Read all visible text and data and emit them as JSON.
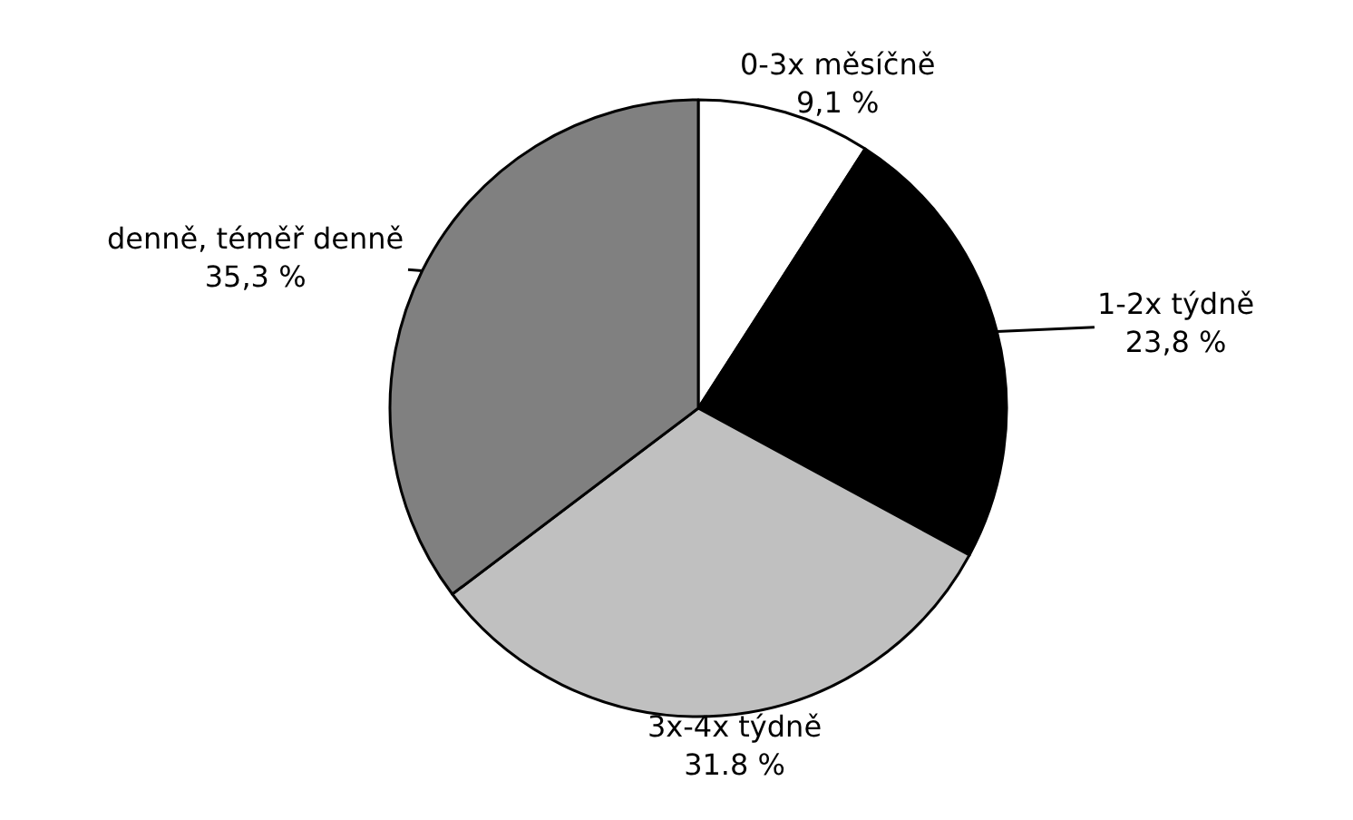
{
  "chart_data": {
    "type": "pie",
    "categories": [
      "0-3x měsíčně",
      "1-2x týdně",
      "3x-4x týdně",
      "denně, téměř denně"
    ],
    "values": [
      9.1,
      23.8,
      31.8,
      35.3
    ],
    "value_labels": [
      "9,1 %",
      "23,8 %",
      "31.8 %",
      "35,3 %"
    ],
    "colors": [
      "#ffffff",
      "#000000",
      "#c0c0c0",
      "#808080"
    ],
    "legend": false
  }
}
